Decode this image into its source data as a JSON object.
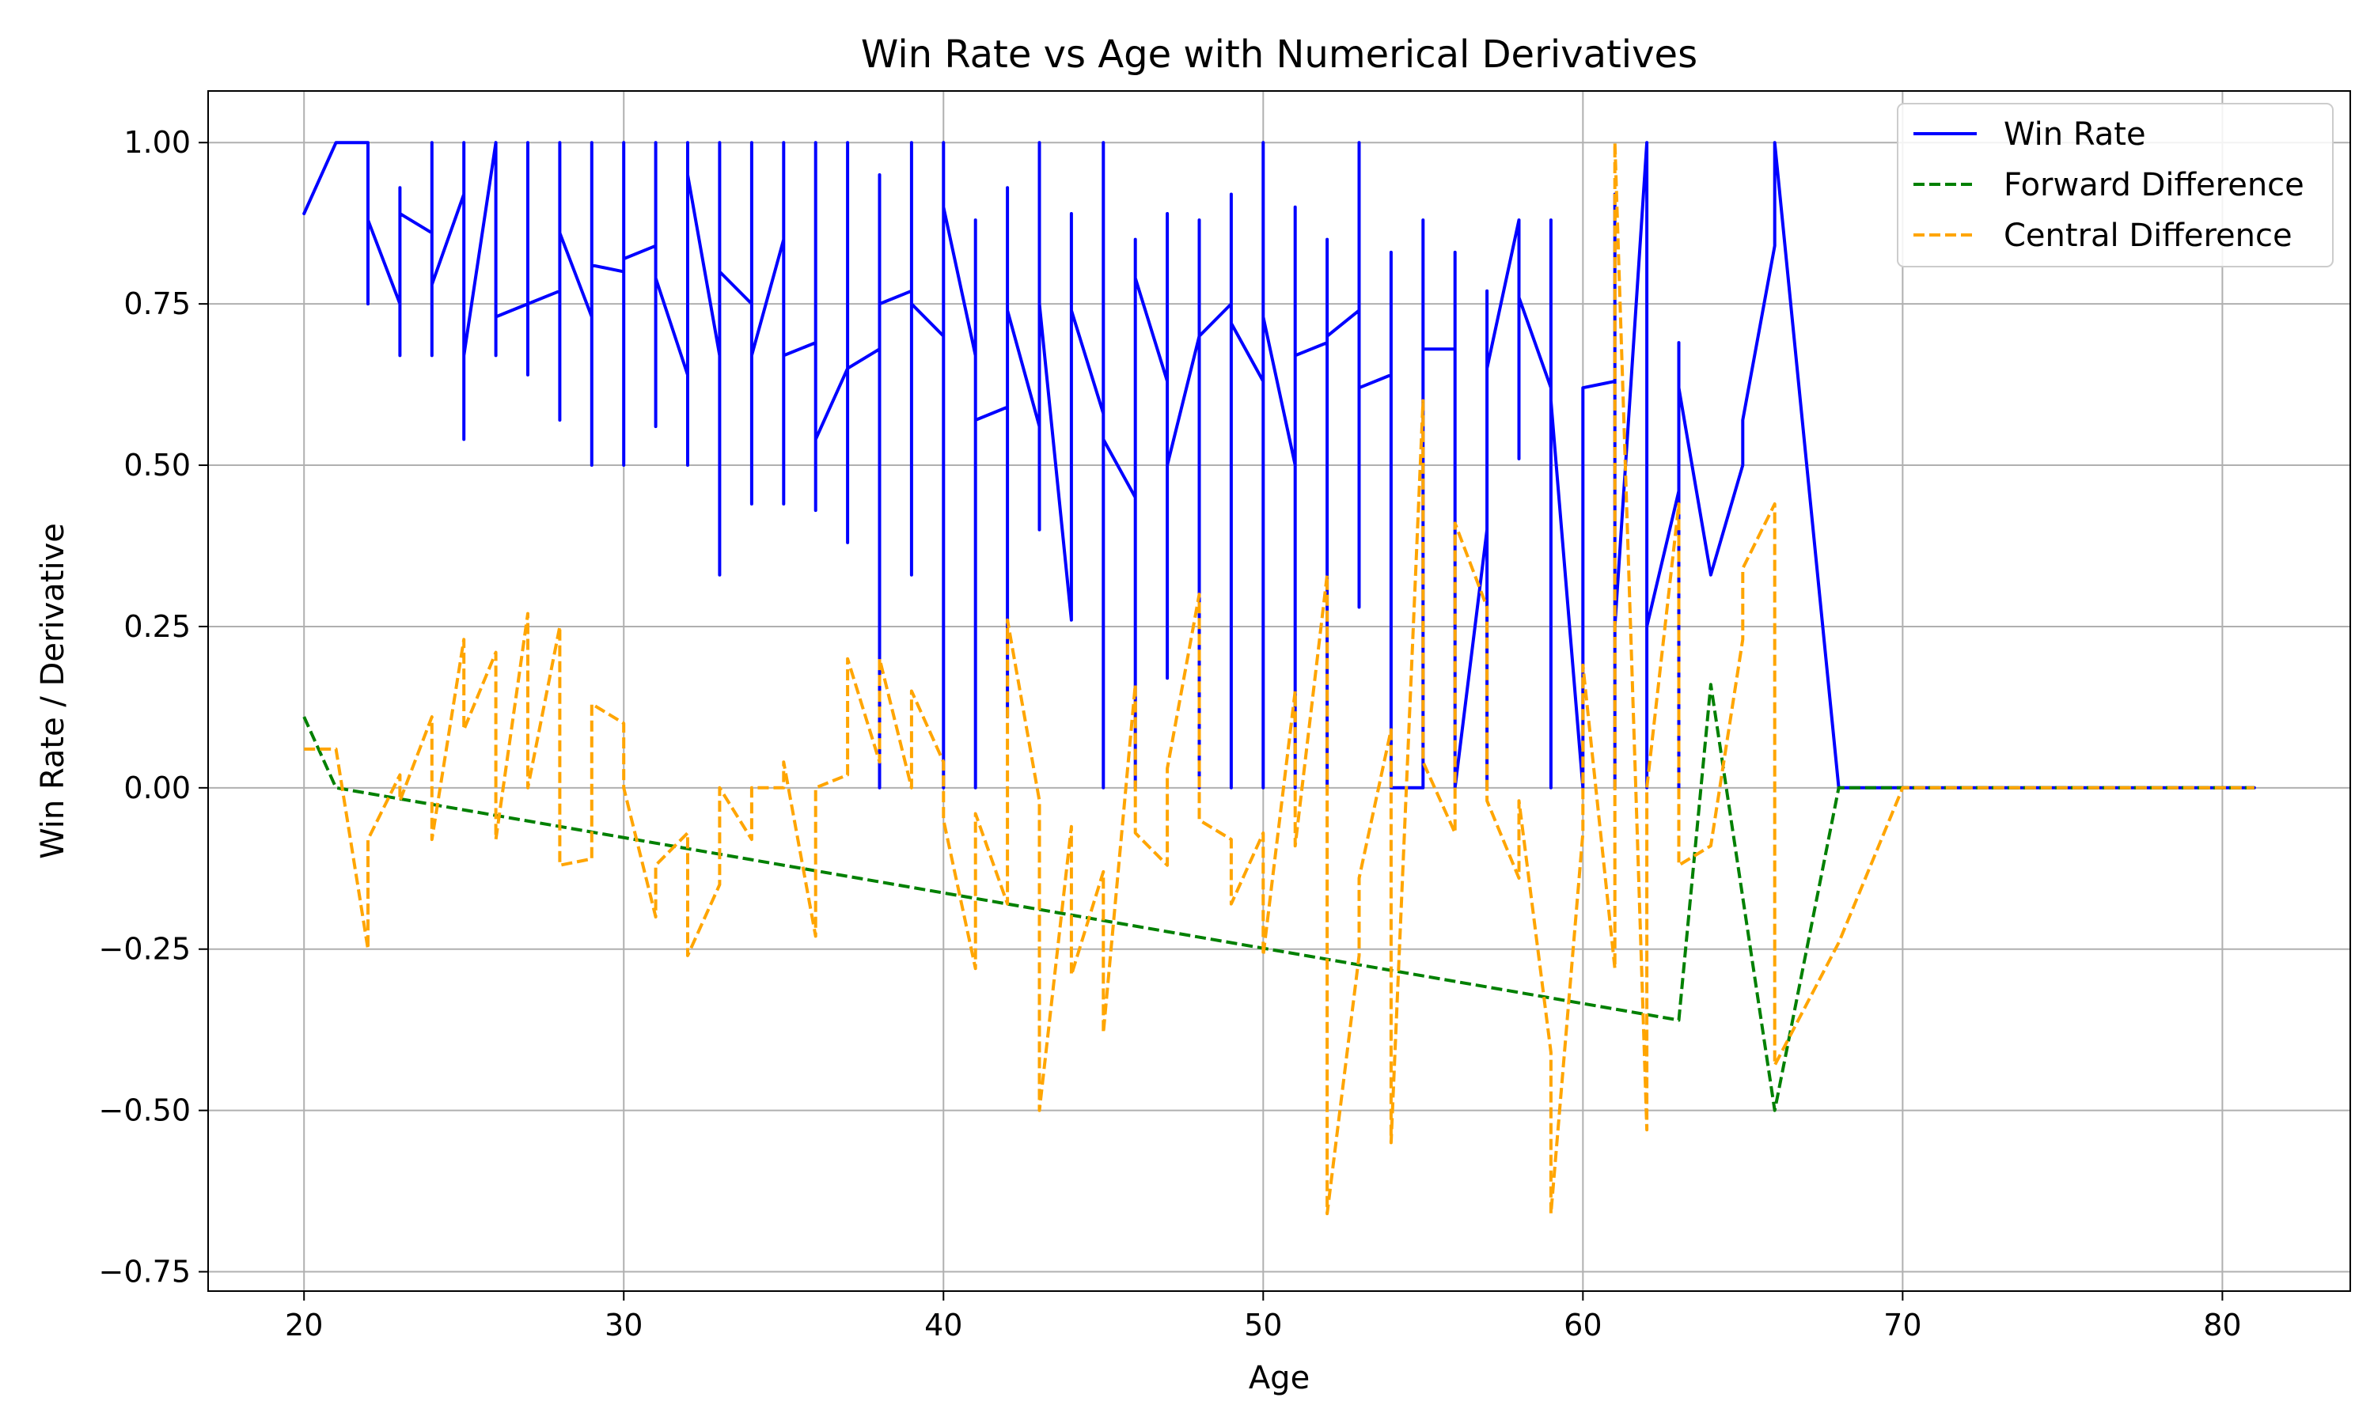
{
  "chart_data": {
    "type": "line",
    "title": "Win Rate vs Age with Numerical Derivatives",
    "xlabel": "Age",
    "ylabel": "Win Rate / Derivative",
    "xlim": [
      17,
      84
    ],
    "ylim": [
      -0.78,
      1.08
    ],
    "xticks": [
      20,
      30,
      40,
      50,
      60,
      70,
      80
    ],
    "yticks": [
      -0.75,
      -0.5,
      -0.25,
      0.0,
      0.25,
      0.5,
      0.75,
      1.0
    ],
    "ytick_labels": [
      "−0.75",
      "−0.50",
      "−0.25",
      "0.00",
      "0.25",
      "0.50",
      "0.75",
      "1.00"
    ],
    "grid": true,
    "legend_position": "top-right",
    "series": [
      {
        "name": "Win Rate",
        "color": "#0000ff",
        "style": "solid",
        "points": [
          [
            20,
            0.89
          ],
          [
            21,
            1.0
          ],
          [
            22,
            1.0
          ],
          [
            22,
            0.75
          ],
          [
            22,
            0.88
          ],
          [
            23,
            0.75
          ],
          [
            23,
            0.67
          ],
          [
            23,
            0.93
          ],
          [
            23,
            0.89
          ],
          [
            24,
            0.86
          ],
          [
            24,
            0.67
          ],
          [
            24,
            1.0
          ],
          [
            24,
            0.78
          ],
          [
            25,
            0.92
          ],
          [
            25,
            1.0
          ],
          [
            25,
            0.54
          ],
          [
            25,
            0.67
          ],
          [
            26,
            1.0
          ],
          [
            26,
            0.67
          ],
          [
            26,
            0.73
          ],
          [
            27,
            0.75
          ],
          [
            27,
            0.64
          ],
          [
            27,
            1.0
          ],
          [
            27,
            0.75
          ],
          [
            28,
            0.77
          ],
          [
            28,
            0.57
          ],
          [
            28,
            1.0
          ],
          [
            28,
            0.86
          ],
          [
            29,
            0.73
          ],
          [
            29,
            0.5
          ],
          [
            29,
            1.0
          ],
          [
            29,
            0.81
          ],
          [
            30,
            0.8
          ],
          [
            30,
            0.5
          ],
          [
            30,
            1.0
          ],
          [
            30,
            0.82
          ],
          [
            31,
            0.84
          ],
          [
            31,
            0.56
          ],
          [
            31,
            1.0
          ],
          [
            31,
            0.79
          ],
          [
            32,
            0.64
          ],
          [
            32,
            0.5
          ],
          [
            32,
            1.0
          ],
          [
            32,
            0.95
          ],
          [
            33,
            0.67
          ],
          [
            33,
            0.33
          ],
          [
            33,
            1.0
          ],
          [
            33,
            0.8
          ],
          [
            34,
            0.75
          ],
          [
            34,
            0.44
          ],
          [
            34,
            1.0
          ],
          [
            34,
            0.67
          ],
          [
            35,
            0.85
          ],
          [
            35,
            0.44
          ],
          [
            35,
            1.0
          ],
          [
            35,
            0.67
          ],
          [
            36,
            0.69
          ],
          [
            36,
            0.43
          ],
          [
            36,
            1.0
          ],
          [
            36,
            0.54
          ],
          [
            37,
            0.65
          ],
          [
            37,
            0.38
          ],
          [
            37,
            1.0
          ],
          [
            37,
            0.65
          ],
          [
            38,
            0.68
          ],
          [
            38,
            0.0
          ],
          [
            38,
            0.95
          ],
          [
            38,
            0.75
          ],
          [
            39,
            0.77
          ],
          [
            39,
            0.33
          ],
          [
            39,
            1.0
          ],
          [
            39,
            0.75
          ],
          [
            40,
            0.7
          ],
          [
            40,
            0.0
          ],
          [
            40,
            1.0
          ],
          [
            40,
            0.9
          ],
          [
            41,
            0.67
          ],
          [
            41,
            0.0
          ],
          [
            41,
            0.88
          ],
          [
            41,
            0.57
          ],
          [
            42,
            0.59
          ],
          [
            42,
            0.11
          ],
          [
            42,
            0.93
          ],
          [
            42,
            0.74
          ],
          [
            43,
            0.56
          ],
          [
            43,
            0.4
          ],
          [
            43,
            1.0
          ],
          [
            43,
            0.75
          ],
          [
            44,
            0.26
          ],
          [
            44,
            0.89
          ],
          [
            44,
            0.74
          ],
          [
            45,
            0.58
          ],
          [
            45,
            0.0
          ],
          [
            45,
            1.0
          ],
          [
            45,
            0.54
          ],
          [
            46,
            0.45
          ],
          [
            46,
            0.0
          ],
          [
            46,
            0.85
          ],
          [
            46,
            0.79
          ],
          [
            47,
            0.63
          ],
          [
            47,
            0.17
          ],
          [
            47,
            0.89
          ],
          [
            47,
            0.5
          ],
          [
            48,
            0.7
          ],
          [
            48,
            0.0
          ],
          [
            48,
            0.88
          ],
          [
            48,
            0.7
          ],
          [
            49,
            0.75
          ],
          [
            49,
            0.0
          ],
          [
            49,
            0.92
          ],
          [
            49,
            0.72
          ],
          [
            50,
            0.63
          ],
          [
            50,
            0.0
          ],
          [
            50,
            1.0
          ],
          [
            50,
            0.73
          ],
          [
            51,
            0.5
          ],
          [
            51,
            0.0
          ],
          [
            51,
            0.9
          ],
          [
            51,
            0.67
          ],
          [
            52,
            0.69
          ],
          [
            52,
            0.0
          ],
          [
            52,
            0.85
          ],
          [
            52,
            0.7
          ],
          [
            53,
            0.74
          ],
          [
            53,
            0.28
          ],
          [
            53,
            1.0
          ],
          [
            53,
            0.62
          ],
          [
            54,
            0.64
          ],
          [
            54,
            0.0
          ],
          [
            54,
            0.83
          ],
          [
            54,
            0.0
          ],
          [
            55,
            0.0
          ],
          [
            55,
            0.88
          ],
          [
            55,
            0.68
          ],
          [
            56,
            0.68
          ],
          [
            56,
            0.0
          ],
          [
            56,
            0.83
          ],
          [
            56,
            0.0
          ],
          [
            57,
            0.4
          ],
          [
            57,
            0.0
          ],
          [
            57,
            0.77
          ],
          [
            57,
            0.65
          ],
          [
            58,
            0.88
          ],
          [
            58,
            0.51
          ],
          [
            58,
            0.88
          ],
          [
            58,
            0.76
          ],
          [
            59,
            0.62
          ],
          [
            59,
            0.0
          ],
          [
            59,
            0.88
          ],
          [
            59,
            0.6
          ],
          [
            60,
            0.0
          ],
          [
            60,
            0.62
          ],
          [
            61,
            0.63
          ],
          [
            61,
            0.0
          ],
          [
            61,
            0.92
          ],
          [
            61,
            0.25
          ],
          [
            62,
            1.0
          ],
          [
            62,
            0.0
          ],
          [
            62,
            0.25
          ],
          [
            63,
            0.46
          ],
          [
            63,
            0.0
          ],
          [
            63,
            0.69
          ],
          [
            63,
            0.62
          ],
          [
            64,
            0.33
          ],
          [
            65,
            0.5
          ],
          [
            65,
            0.57
          ],
          [
            66,
            0.84
          ],
          [
            66,
            1.0
          ],
          [
            68,
            0.0
          ],
          [
            81,
            0.0
          ]
        ]
      },
      {
        "name": "Forward Difference",
        "color": "#008000",
        "style": "dashed",
        "points": [
          [
            20,
            0.11
          ],
          [
            21,
            0.0
          ],
          [
            63,
            -0.36
          ],
          [
            64,
            0.16
          ],
          [
            66,
            -0.5
          ],
          [
            68,
            0.0
          ],
          [
            81,
            0.0
          ]
        ]
      },
      {
        "name": "Central Difference",
        "color": "#ffa500",
        "style": "dashed",
        "points": [
          [
            20,
            0.06
          ],
          [
            21,
            0.06
          ],
          [
            22,
            -0.25
          ],
          [
            22,
            -0.08
          ],
          [
            23,
            0.02
          ],
          [
            23,
            -0.02
          ],
          [
            24,
            0.11
          ],
          [
            24,
            -0.08
          ],
          [
            25,
            0.23
          ],
          [
            25,
            0.09
          ],
          [
            26,
            0.21
          ],
          [
            26,
            -0.08
          ],
          [
            27,
            0.27
          ],
          [
            27,
            0.0
          ],
          [
            28,
            0.25
          ],
          [
            28,
            -0.12
          ],
          [
            29,
            -0.11
          ],
          [
            29,
            0.13
          ],
          [
            30,
            0.1
          ],
          [
            30,
            0.0
          ],
          [
            31,
            -0.2
          ],
          [
            31,
            -0.12
          ],
          [
            32,
            -0.07
          ],
          [
            32,
            -0.26
          ],
          [
            33,
            -0.15
          ],
          [
            33,
            0.0
          ],
          [
            34,
            -0.08
          ],
          [
            34,
            0.0
          ],
          [
            35,
            0.0
          ],
          [
            35,
            0.04
          ],
          [
            36,
            -0.23
          ],
          [
            36,
            0.0
          ],
          [
            37,
            0.02
          ],
          [
            37,
            0.2
          ],
          [
            38,
            0.04
          ],
          [
            38,
            0.2
          ],
          [
            39,
            0.0
          ],
          [
            39,
            0.15
          ],
          [
            40,
            0.04
          ],
          [
            40,
            -0.05
          ],
          [
            41,
            -0.28
          ],
          [
            41,
            -0.04
          ],
          [
            42,
            -0.18
          ],
          [
            42,
            0.26
          ],
          [
            43,
            -0.02
          ],
          [
            43,
            -0.5
          ],
          [
            44,
            -0.06
          ],
          [
            44,
            -0.29
          ],
          [
            45,
            -0.13
          ],
          [
            45,
            -0.38
          ],
          [
            46,
            0.16
          ],
          [
            46,
            -0.07
          ],
          [
            47,
            -0.12
          ],
          [
            47,
            0.03
          ],
          [
            48,
            0.3
          ],
          [
            48,
            -0.05
          ],
          [
            49,
            -0.08
          ],
          [
            49,
            -0.18
          ],
          [
            50,
            -0.07
          ],
          [
            50,
            -0.26
          ],
          [
            51,
            0.15
          ],
          [
            51,
            -0.09
          ],
          [
            52,
            0.33
          ],
          [
            52,
            -0.66
          ],
          [
            53,
            -0.26
          ],
          [
            53,
            -0.14
          ],
          [
            54,
            0.09
          ],
          [
            54,
            -0.55
          ],
          [
            55,
            0.6
          ],
          [
            55,
            0.04
          ],
          [
            56,
            -0.07
          ],
          [
            56,
            0.41
          ],
          [
            57,
            0.28
          ],
          [
            57,
            -0.02
          ],
          [
            58,
            -0.14
          ],
          [
            58,
            -0.02
          ],
          [
            59,
            -0.41
          ],
          [
            59,
            -0.66
          ],
          [
            60,
            -0.07
          ],
          [
            60,
            0.19
          ],
          [
            61,
            -0.28
          ],
          [
            61,
            1.0
          ],
          [
            62,
            -0.53
          ],
          [
            62,
            0.0
          ],
          [
            63,
            0.44
          ],
          [
            63,
            -0.12
          ],
          [
            64,
            -0.09
          ],
          [
            65,
            0.23
          ],
          [
            65,
            0.34
          ],
          [
            66,
            0.44
          ],
          [
            66,
            -0.43
          ],
          [
            68,
            -0.24
          ],
          [
            70,
            0.0
          ],
          [
            81,
            0.0
          ]
        ]
      }
    ]
  }
}
